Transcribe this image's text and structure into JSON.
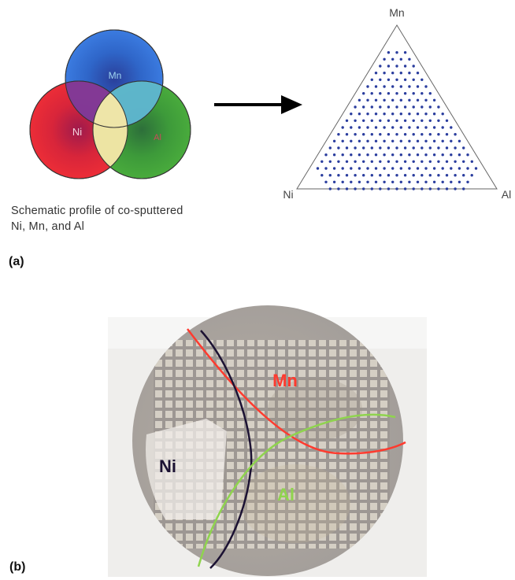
{
  "panel_a": {
    "label": "(a)",
    "venn": {
      "mn": "Mn",
      "ni": "Ni",
      "al": "Al"
    },
    "caption_line1": "Schematic profile of co-sputtered",
    "caption_line2": "Ni, Mn, and Al",
    "ternary": {
      "top": "Mn",
      "left": "Ni",
      "right": "Al"
    }
  },
  "panel_b": {
    "label": "(b)",
    "wafer": {
      "mn": "Mn",
      "ni": "Ni",
      "al": "Al"
    }
  },
  "colors": {
    "mn_circle": "#2f6fd6",
    "ni_circle": "#e02a38",
    "al_circle": "#3aa33a",
    "ternary_dots": "#2a3d9e",
    "mn_curve": "#ff3b2f",
    "ni_curve": "#1c1233",
    "al_curve": "#8fd44e"
  }
}
